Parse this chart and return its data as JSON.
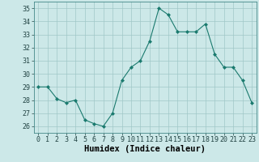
{
  "x": [
    0,
    1,
    2,
    3,
    4,
    5,
    6,
    7,
    8,
    9,
    10,
    11,
    12,
    13,
    14,
    15,
    16,
    17,
    18,
    19,
    20,
    21,
    22,
    23
  ],
  "y": [
    29.0,
    29.0,
    28.1,
    27.8,
    28.0,
    26.5,
    26.2,
    26.0,
    27.0,
    29.5,
    30.5,
    31.0,
    32.5,
    35.0,
    34.5,
    33.2,
    33.2,
    33.2,
    33.8,
    31.5,
    30.5,
    30.5,
    29.5,
    27.8
  ],
  "xlabel": "Humidex (Indice chaleur)",
  "xlim": [
    -0.5,
    23.5
  ],
  "ylim": [
    25.5,
    35.5
  ],
  "yticks": [
    26,
    27,
    28,
    29,
    30,
    31,
    32,
    33,
    34,
    35
  ],
  "xtick_labels": [
    "0",
    "1",
    "2",
    "3",
    "4",
    "5",
    "6",
    "7",
    "8",
    "9",
    "10",
    "11",
    "12",
    "13",
    "14",
    "15",
    "16",
    "17",
    "18",
    "19",
    "20",
    "21",
    "22",
    "23"
  ],
  "line_color": "#1a7a6e",
  "marker_color": "#1a7a6e",
  "bg_color": "#cce8e8",
  "grid_color": "#a0c8c8",
  "axis_fontsize": 6.5,
  "tick_fontsize": 6.0,
  "xlabel_fontsize": 7.5
}
